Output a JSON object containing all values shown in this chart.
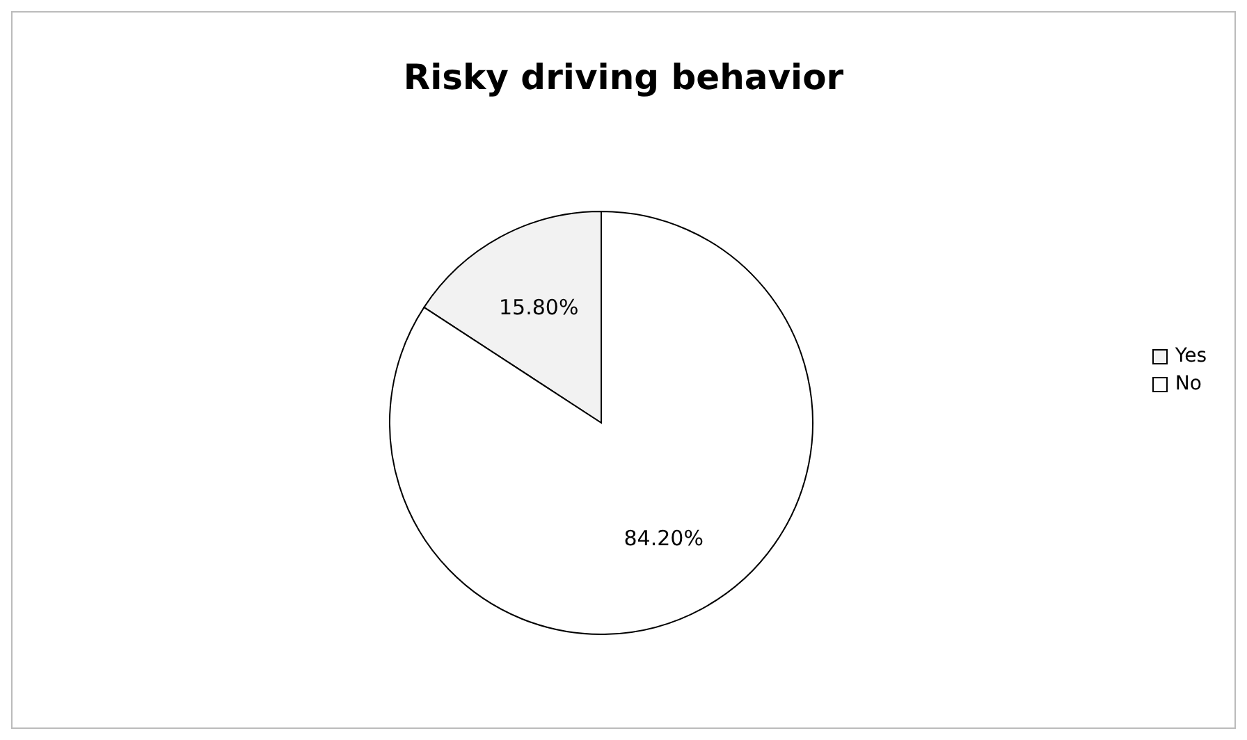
{
  "chart_data": {
    "type": "pie",
    "title": "Risky driving behavior",
    "categories": [
      "Yes",
      "No"
    ],
    "values": [
      15.8,
      84.2
    ],
    "value_labels": [
      "15.80%",
      "84.20%"
    ],
    "colors": [
      "#f2f2f2",
      "#ffffff"
    ],
    "legend": "right"
  }
}
